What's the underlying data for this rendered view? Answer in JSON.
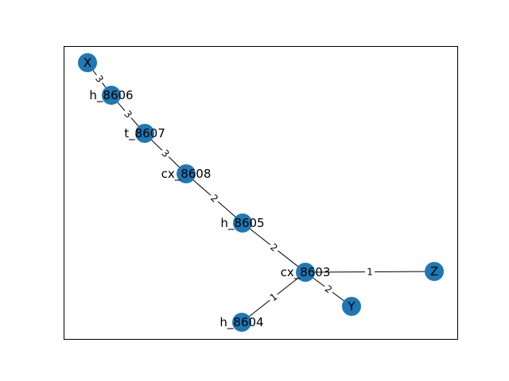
{
  "graph": {
    "node_color": "#1f77b4",
    "edge_color": "#000000",
    "nodes": [
      {
        "id": "X",
        "label": "X"
      },
      {
        "id": "h_8606",
        "label": "h_8606"
      },
      {
        "id": "t_8607",
        "label": "t_8607"
      },
      {
        "id": "cx_8608",
        "label": "cx_8608"
      },
      {
        "id": "h_8605",
        "label": "h_8605"
      },
      {
        "id": "cx_8603",
        "label": "cx_8603"
      },
      {
        "id": "Z",
        "label": "Z"
      },
      {
        "id": "Y",
        "label": "Y"
      },
      {
        "id": "h_8604",
        "label": "h_8604"
      }
    ],
    "edges": [
      {
        "source": "X",
        "target": "h_8606",
        "label": "3"
      },
      {
        "source": "h_8606",
        "target": "t_8607",
        "label": "3"
      },
      {
        "source": "t_8607",
        "target": "cx_8608",
        "label": "3"
      },
      {
        "source": "cx_8608",
        "target": "h_8605",
        "label": "2"
      },
      {
        "source": "h_8605",
        "target": "cx_8603",
        "label": "2"
      },
      {
        "source": "cx_8603",
        "target": "Z",
        "label": "1"
      },
      {
        "source": "cx_8603",
        "target": "Y",
        "label": "2"
      },
      {
        "source": "cx_8603",
        "target": "h_8604",
        "label": "1"
      }
    ]
  }
}
